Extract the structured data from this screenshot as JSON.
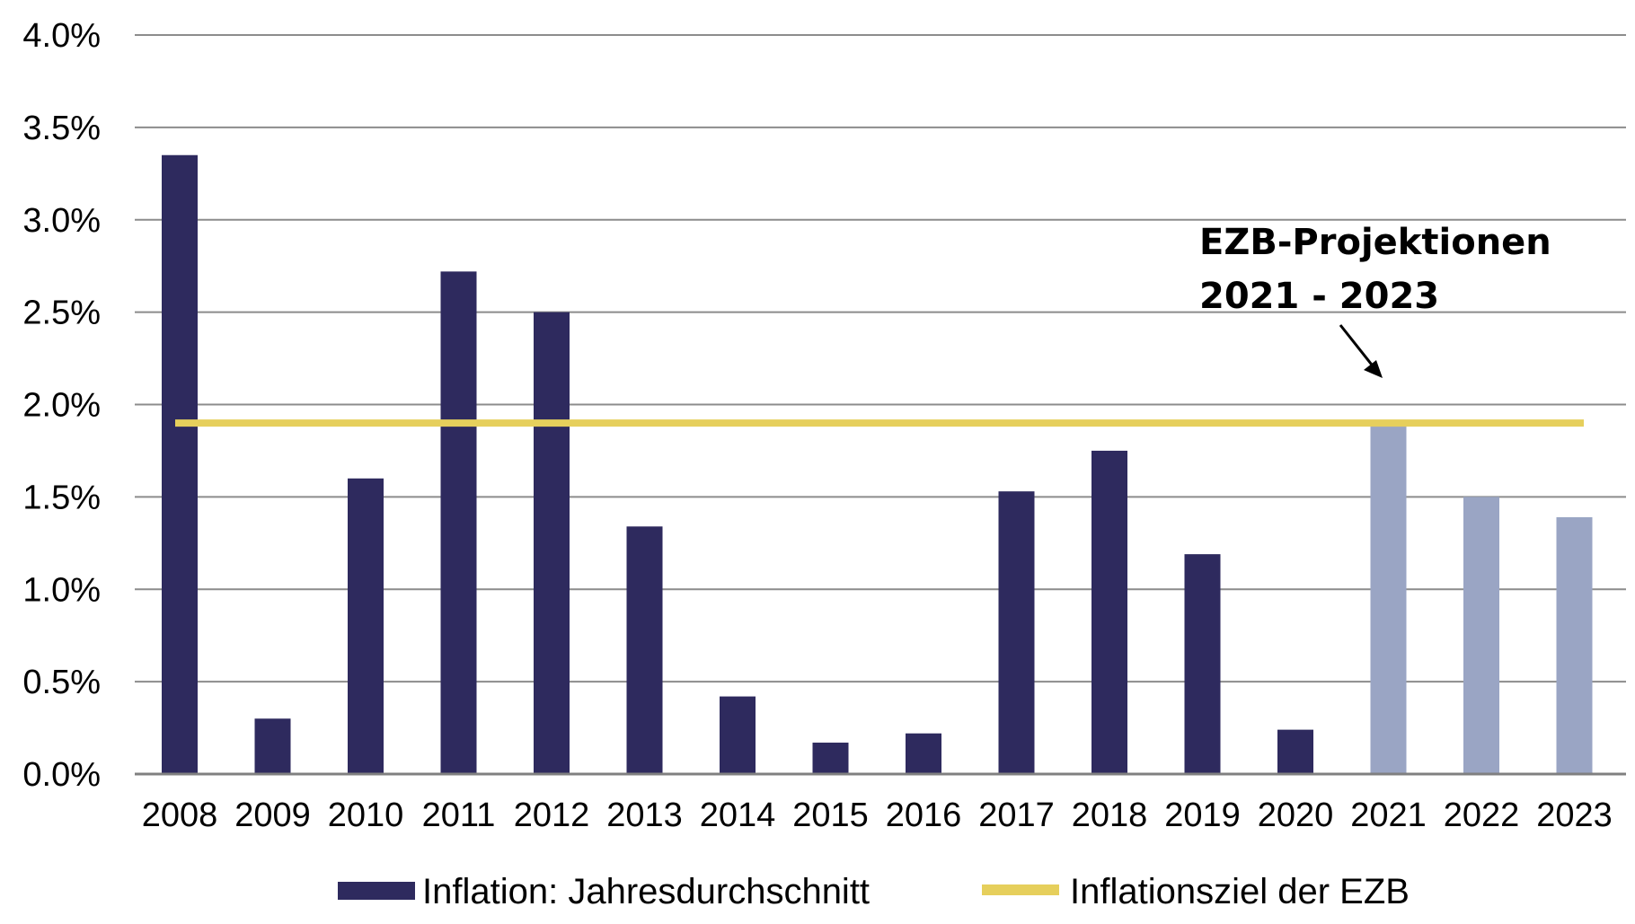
{
  "chart_data": {
    "type": "bar",
    "categories": [
      "2008",
      "2009",
      "2010",
      "2011",
      "2012",
      "2013",
      "2014",
      "2015",
      "2016",
      "2017",
      "2018",
      "2019",
      "2020",
      "2021",
      "2022",
      "2023"
    ],
    "series": [
      {
        "name": "Inflation: Jahresdurchschnitt",
        "values": [
          3.35,
          0.3,
          1.6,
          2.72,
          2.5,
          1.34,
          0.42,
          0.17,
          0.22,
          1.53,
          1.75,
          1.19,
          0.24,
          1.9,
          1.5,
          1.39
        ],
        "projected_from": "2021"
      },
      {
        "name": "Inflationsziel der EZB",
        "type": "line",
        "value": 1.9
      }
    ],
    "ylim": [
      0,
      4.0
    ],
    "yticks": [
      0.0,
      0.5,
      1.0,
      1.5,
      2.0,
      2.5,
      3.0,
      3.5,
      4.0
    ],
    "ytick_labels": [
      "0.0%",
      "0.5%",
      "1.0%",
      "1.5%",
      "2.0%",
      "2.5%",
      "3.0%",
      "3.5%",
      "4.0%"
    ],
    "grid": true,
    "legend_position": "bottom",
    "annotation": {
      "line1": "EZB-Projektionen",
      "line2": "2021 - 2023",
      "points_to": "2021"
    },
    "colors": {
      "bar_actual": "#2e2a5e",
      "bar_projected": "#9aa5c4",
      "target_line": "#e6cf5c",
      "grid": "#8c8c8c",
      "axis": "#808080"
    }
  }
}
